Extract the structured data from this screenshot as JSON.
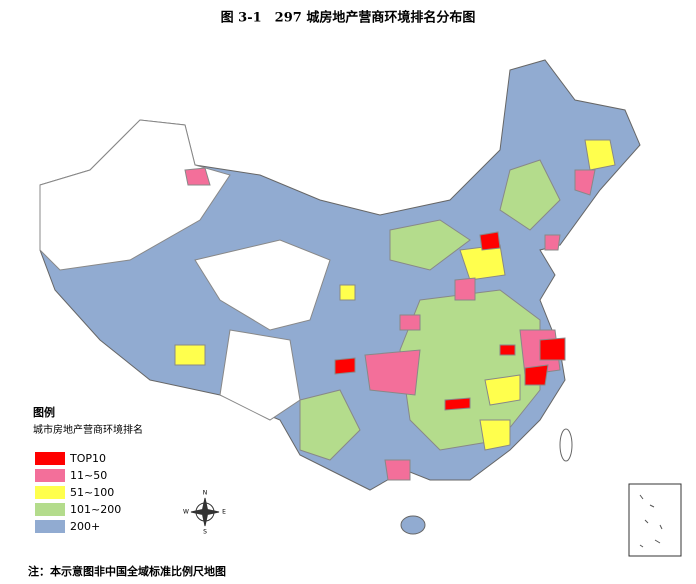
{
  "title": "图 3-1　297 城房地产营商环境排名分布图",
  "legend": {
    "title": "图例",
    "subtitle": "城市房地产营商环境排名",
    "items": [
      {
        "label": "TOP10",
        "color": "#ff0000"
      },
      {
        "label": "11~50",
        "color": "#f36f9a"
      },
      {
        "label": "51~100",
        "color": "#ffff4d"
      },
      {
        "label": "101~200",
        "color": "#b4dc8c"
      },
      {
        "label": "200+",
        "color": "#91abd1"
      }
    ]
  },
  "compass": {
    "n": "N",
    "s": "S",
    "e": "E",
    "w": "W"
  },
  "footnote": "注：本示意图非中国全域标准比例尺地图"
}
